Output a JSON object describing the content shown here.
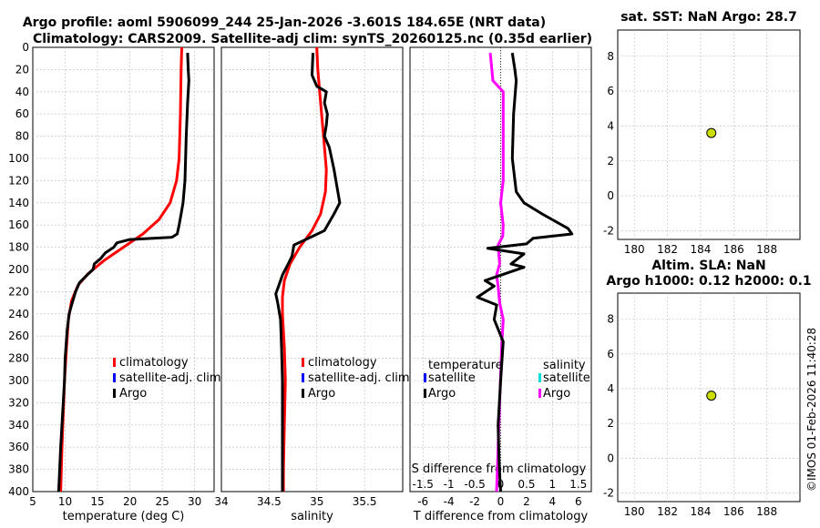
{
  "title": {
    "line1": "Argo profile: aoml 5906099_244 25-Jan-2026 -3.601S 184.65E (NRT data)",
    "line2": "Climatology: CARS2009. Satellite-adj clim: synTS_20260125.nc (0.35d earlier)"
  },
  "credit": "©IMOS 01-Feb-2026 11:40:28",
  "chart_data": [
    {
      "id": "temperature",
      "type": "line",
      "xlabel": "temperature (deg C)",
      "ylabel": "",
      "xlim": [
        5,
        33
      ],
      "ylim": [
        0,
        400
      ],
      "y_reversed": true,
      "xticks": [
        5,
        10,
        15,
        20,
        25,
        30
      ],
      "yticks": [
        0,
        20,
        40,
        60,
        80,
        100,
        120,
        140,
        160,
        180,
        200,
        220,
        240,
        260,
        280,
        300,
        320,
        340,
        360,
        380,
        400
      ],
      "legend": {
        "position": "bottom-right",
        "items": [
          "climatology",
          "satellite-adj. clim",
          "Argo"
        ]
      },
      "series": [
        {
          "name": "climatology",
          "color": "#ff0000",
          "points": [
            [
              28.0,
              0
            ],
            [
              27.9,
              20
            ],
            [
              27.8,
              60
            ],
            [
              27.6,
              100
            ],
            [
              27.2,
              120
            ],
            [
              26.2,
              140
            ],
            [
              24.5,
              155
            ],
            [
              22.0,
              168
            ],
            [
              19.0,
              180
            ],
            [
              16.0,
              192
            ],
            [
              13.5,
              204
            ],
            [
              12.0,
              214
            ],
            [
              11.0,
              228
            ],
            [
              10.5,
              245
            ],
            [
              10.2,
              270
            ],
            [
              9.9,
              300
            ],
            [
              9.7,
              330
            ],
            [
              9.5,
              360
            ],
            [
              9.3,
              400
            ]
          ]
        },
        {
          "name": "Argo",
          "color": "#000000",
          "points": [
            [
              28.9,
              5
            ],
            [
              29.0,
              20
            ],
            [
              29.1,
              30
            ],
            [
              28.9,
              50
            ],
            [
              28.7,
              80
            ],
            [
              28.5,
              120
            ],
            [
              28.2,
              140
            ],
            [
              27.9,
              150
            ],
            [
              27.6,
              160
            ],
            [
              27.3,
              168
            ],
            [
              26.5,
              171
            ],
            [
              20.0,
              173
            ],
            [
              18.0,
              176
            ],
            [
              17.5,
              180
            ],
            [
              16.2,
              185
            ],
            [
              15.5,
              190
            ],
            [
              14.5,
              195
            ],
            [
              14.3,
              200
            ],
            [
              13.4,
              205
            ],
            [
              12.2,
              212
            ],
            [
              11.6,
              220
            ],
            [
              11.3,
              226
            ],
            [
              11.0,
              232
            ],
            [
              10.6,
              240
            ],
            [
              10.3,
              255
            ],
            [
              10.0,
              280
            ],
            [
              9.9,
              300
            ],
            [
              9.6,
              330
            ],
            [
              9.3,
              360
            ],
            [
              9.0,
              400
            ]
          ]
        }
      ]
    },
    {
      "id": "salinity",
      "type": "line",
      "xlabel": "salinity",
      "xlim": [
        34,
        35.9
      ],
      "ylim": [
        0,
        400
      ],
      "y_reversed": true,
      "xticks": [
        34,
        34.5,
        35,
        35.5
      ],
      "legend": {
        "position": "bottom-right",
        "items": [
          "climatology",
          "satellite-adj. clim",
          "Argo"
        ]
      },
      "series": [
        {
          "name": "climatology",
          "color": "#ff0000",
          "points": [
            [
              35.0,
              0
            ],
            [
              35.01,
              20
            ],
            [
              35.04,
              50
            ],
            [
              35.07,
              80
            ],
            [
              35.1,
              110
            ],
            [
              35.09,
              130
            ],
            [
              35.04,
              150
            ],
            [
              34.95,
              165
            ],
            [
              34.82,
              180
            ],
            [
              34.72,
              195
            ],
            [
              34.66,
              210
            ],
            [
              34.64,
              225
            ],
            [
              34.64,
              240
            ],
            [
              34.66,
              270
            ],
            [
              34.67,
              300
            ],
            [
              34.66,
              340
            ],
            [
              34.65,
              380
            ],
            [
              34.65,
              400
            ]
          ]
        },
        {
          "name": "Argo",
          "color": "#000000",
          "points": [
            [
              34.96,
              5
            ],
            [
              34.95,
              25
            ],
            [
              35.0,
              35
            ],
            [
              35.1,
              40
            ],
            [
              35.08,
              50
            ],
            [
              35.11,
              60
            ],
            [
              35.1,
              70
            ],
            [
              35.08,
              80
            ],
            [
              35.13,
              90
            ],
            [
              35.18,
              110
            ],
            [
              35.22,
              130
            ],
            [
              35.24,
              140
            ],
            [
              35.18,
              150
            ],
            [
              35.08,
              165
            ],
            [
              34.96,
              170
            ],
            [
              34.76,
              178
            ],
            [
              34.74,
              188
            ],
            [
              34.7,
              195
            ],
            [
              34.64,
              205
            ],
            [
              34.6,
              215
            ],
            [
              34.57,
              222
            ],
            [
              34.59,
              230
            ],
            [
              34.62,
              245
            ],
            [
              34.63,
              270
            ],
            [
              34.64,
              300
            ],
            [
              34.64,
              340
            ],
            [
              34.64,
              380
            ],
            [
              34.64,
              400
            ]
          ]
        }
      ]
    },
    {
      "id": "difference",
      "type": "line",
      "xlabel": "T difference from climatology",
      "xlabel_top": "S difference from climatology",
      "xlim": [
        -7,
        7
      ],
      "top_xlim": [
        -1.75,
        1.75
      ],
      "ylim": [
        0,
        400
      ],
      "y_reversed": true,
      "xticks": [
        -6,
        -4,
        -2,
        0,
        2,
        4,
        6
      ],
      "top_ticks": [
        -1.5,
        -1,
        -0.5,
        0,
        0.5,
        1,
        1.5
      ],
      "top_tick_labels": [
        "-1.5",
        "-1",
        "-0.5",
        "0",
        "0.5",
        "1",
        "1.5"
      ],
      "legend_left": {
        "title": "temperature",
        "items": [
          "satellite",
          "Argo"
        ]
      },
      "legend_right": {
        "title": "salinity",
        "items": [
          "satellite",
          "Argo"
        ]
      },
      "series": [
        {
          "name": "salinity Argo",
          "color": "#ff00ff",
          "units": "S difference",
          "points": [
            [
              -0.2,
              5
            ],
            [
              -0.15,
              30
            ],
            [
              0.05,
              40
            ],
            [
              0.05,
              90
            ],
            [
              0.05,
              120
            ],
            [
              0.0,
              140
            ],
            [
              0.05,
              160
            ],
            [
              0.04,
              170
            ],
            [
              -0.05,
              178
            ],
            [
              -0.02,
              195
            ],
            [
              -0.08,
              205
            ],
            [
              -0.05,
              215
            ],
            [
              -0.02,
              230
            ],
            [
              0.05,
              245
            ],
            [
              0.02,
              270
            ],
            [
              -0.02,
              320
            ],
            [
              -0.05,
              360
            ],
            [
              -0.08,
              400
            ]
          ]
        },
        {
          "name": "temperature Argo",
          "color": "#000000",
          "units": "T difference",
          "points": [
            [
              0.9,
              5
            ],
            [
              1.1,
              20
            ],
            [
              1.2,
              30
            ],
            [
              1.0,
              60
            ],
            [
              0.9,
              100
            ],
            [
              1.2,
              130
            ],
            [
              1.8,
              140
            ],
            [
              3.2,
              150
            ],
            [
              5.2,
              163
            ],
            [
              5.5,
              168
            ],
            [
              2.5,
              172
            ],
            [
              2.0,
              177
            ],
            [
              -1.0,
              181
            ],
            [
              1.8,
              186
            ],
            [
              0.8,
              195
            ],
            [
              1.8,
              198
            ],
            [
              -1.2,
              210
            ],
            [
              -0.5,
              215
            ],
            [
              -1.8,
              225
            ],
            [
              -0.3,
              232
            ],
            [
              -0.5,
              245
            ],
            [
              0.2,
              265
            ],
            [
              0.0,
              300
            ],
            [
              -0.2,
              340
            ],
            [
              -0.1,
              380
            ],
            [
              0.0,
              400
            ]
          ]
        }
      ]
    },
    {
      "id": "sst",
      "type": "scatter",
      "title": "sat. SST: NaN Argo: 28.7",
      "xlim": [
        179,
        190
      ],
      "ylim": [
        -2.5,
        9.5
      ],
      "xticks": [
        180,
        182,
        184,
        186,
        188
      ],
      "yticks": [
        -2,
        0,
        2,
        4,
        6,
        8
      ],
      "points": [
        [
          184.65,
          3.6
        ]
      ],
      "marker_color": "#ccdd00"
    },
    {
      "id": "sla",
      "type": "scatter",
      "title": "Altim. SLA: NaN",
      "subtitle": "Argo h1000: 0.12 h2000: 0.1",
      "xlim": [
        179,
        190
      ],
      "ylim": [
        -2.5,
        9.5
      ],
      "xticks": [
        180,
        182,
        184,
        186,
        188
      ],
      "yticks": [
        -2,
        0,
        2,
        4,
        6,
        8
      ],
      "points": [
        [
          184.65,
          3.6
        ]
      ],
      "marker_color": "#ccdd00"
    }
  ]
}
